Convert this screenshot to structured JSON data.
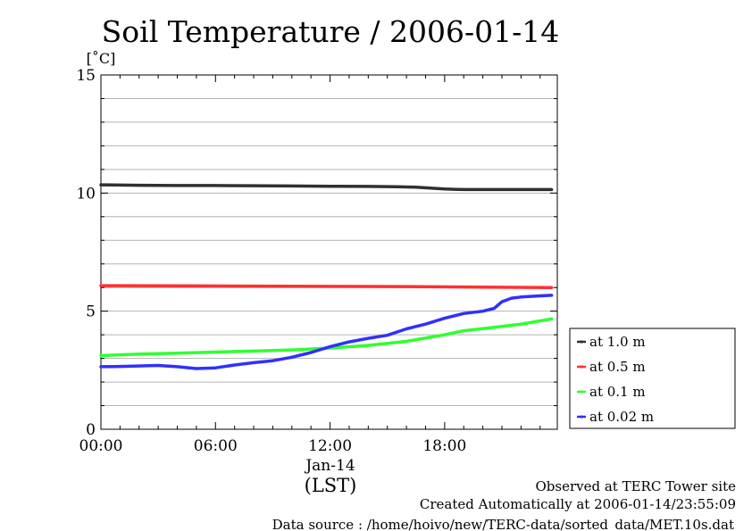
{
  "chart_data": {
    "type": "line",
    "title": "Soil Temperature / 2006-01-14",
    "ylabel": "[˚C]",
    "xlabel": "(LST)",
    "date_label": "Jan-14",
    "ylim": [
      0,
      15
    ],
    "xlim": [
      0,
      23.9
    ],
    "yticks": [
      0,
      5,
      10,
      15
    ],
    "ytick_labels": [
      "0",
      "5",
      "10",
      "15"
    ],
    "xticks": [
      0,
      6,
      12,
      18
    ],
    "xtick_labels": [
      "00:00",
      "06:00",
      "12:00",
      "18:00"
    ],
    "grid": true,
    "legend_position": "right",
    "series": [
      {
        "name": "at 1.0 m",
        "color": "#303030",
        "x": [
          0,
          2,
          4,
          6,
          8,
          10,
          12,
          14,
          15.5,
          16.5,
          18,
          19,
          20,
          22,
          23.6
        ],
        "y": [
          10.35,
          10.33,
          10.32,
          10.32,
          10.31,
          10.3,
          10.29,
          10.28,
          10.27,
          10.25,
          10.17,
          10.15,
          10.15,
          10.15,
          10.15
        ]
      },
      {
        "name": "at 0.5 m",
        "color": "#ff3030",
        "x": [
          0,
          4,
          8,
          12,
          16,
          20,
          23.6
        ],
        "y": [
          6.08,
          6.07,
          6.06,
          6.05,
          6.04,
          6.02,
          6.0
        ]
      },
      {
        "name": "at 0.1 m",
        "color": "#30ff30",
        "x": [
          0,
          2,
          4,
          6,
          8,
          10,
          12,
          14,
          16,
          18,
          19,
          20,
          22,
          23.6
        ],
        "y": [
          3.12,
          3.18,
          3.22,
          3.27,
          3.31,
          3.36,
          3.44,
          3.55,
          3.72,
          4.0,
          4.17,
          4.26,
          4.45,
          4.67
        ]
      },
      {
        "name": "at 0.02 m",
        "color": "#3030ff",
        "x": [
          0,
          1,
          3,
          4,
          5,
          6,
          7,
          8,
          9,
          10,
          11,
          12,
          13,
          14,
          15,
          16,
          17,
          18,
          19,
          20,
          20.6,
          21,
          21.5,
          22,
          23,
          23.6
        ],
        "y": [
          2.65,
          2.66,
          2.7,
          2.65,
          2.57,
          2.6,
          2.72,
          2.82,
          2.9,
          3.05,
          3.25,
          3.5,
          3.7,
          3.85,
          3.98,
          4.25,
          4.45,
          4.7,
          4.9,
          5.0,
          5.12,
          5.4,
          5.55,
          5.6,
          5.65,
          5.67
        ]
      }
    ]
  },
  "footer": {
    "line1": "Observed at TERC Tower site",
    "line2": "Created Automatically at 2006-01-14/23:55:09",
    "line3": "Data source : /home/hoivo/new/TERC-data/sorted_data/MET.10s.dat"
  }
}
